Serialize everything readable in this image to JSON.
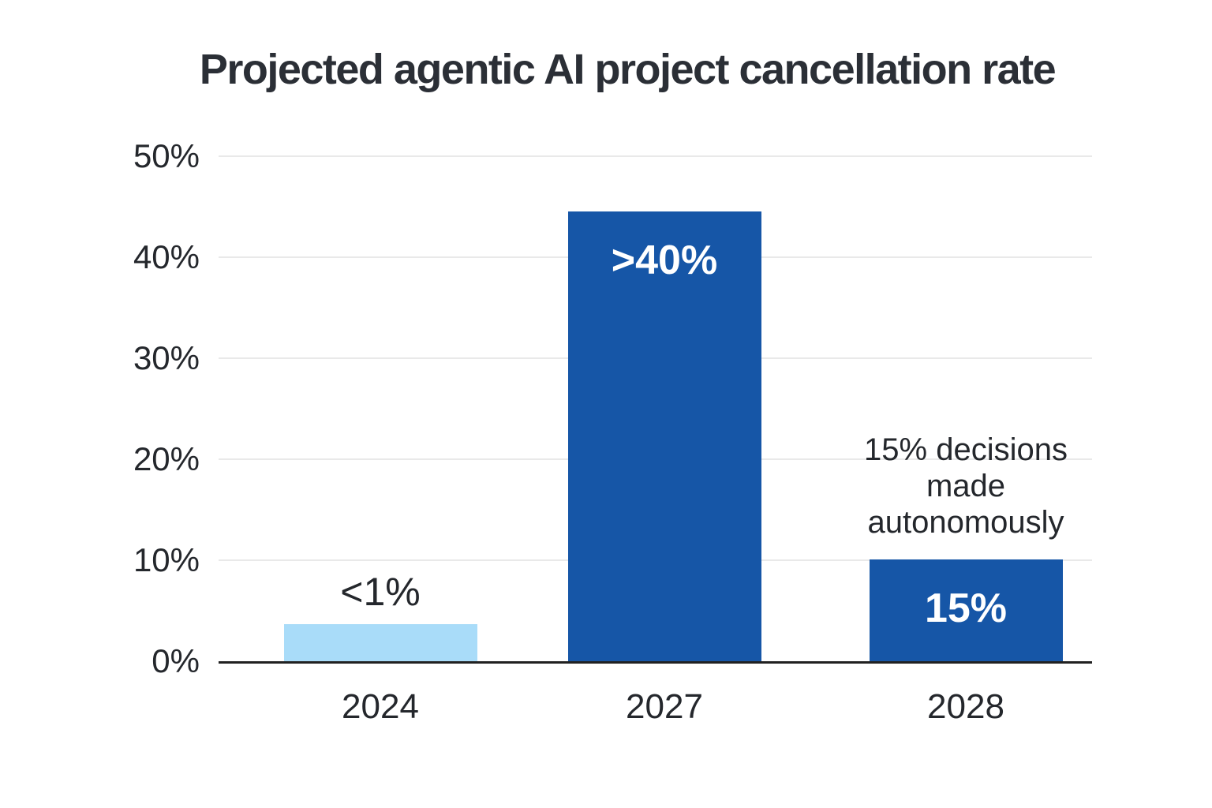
{
  "chart_data": {
    "type": "bar",
    "title": "Projected agentic AI project cancellation rate",
    "xlabel": "",
    "ylabel": "",
    "ylim": [
      0,
      50
    ],
    "y_ticks": [
      0,
      10,
      20,
      30,
      40,
      50
    ],
    "y_tick_suffix": "%",
    "grid": "horizontal-on",
    "legend": "none",
    "categories": [
      "2024",
      "2027",
      "2028"
    ],
    "bars": [
      {
        "category": "2024",
        "value_label": "<1%",
        "drawn_value_pct": 3.7,
        "color": "#a9dcf9",
        "value_label_position": "above",
        "value_label_color": "#24272c"
      },
      {
        "category": "2027",
        "value_label": ">40%",
        "drawn_value_pct": 44.5,
        "color": "#1656a7",
        "value_label_position": "inside-top",
        "value_label_color": "#ffffff"
      },
      {
        "category": "2028",
        "value_label": "15%",
        "drawn_value_pct": 10.1,
        "color": "#1656a7",
        "value_label_position": "inside-top",
        "value_label_color": "#ffffff",
        "annotation_lines": [
          "15% decisions",
          "made",
          "autonomously"
        ]
      }
    ],
    "colors": {
      "background": "#ffffff",
      "axis_line": "#212121",
      "gridline": "#e9e9e9",
      "title_text": "#2b2f36",
      "tick_text": "#24272c",
      "bar_dark_blue": "#1656a7",
      "bar_light_blue": "#a9dcf9"
    }
  }
}
